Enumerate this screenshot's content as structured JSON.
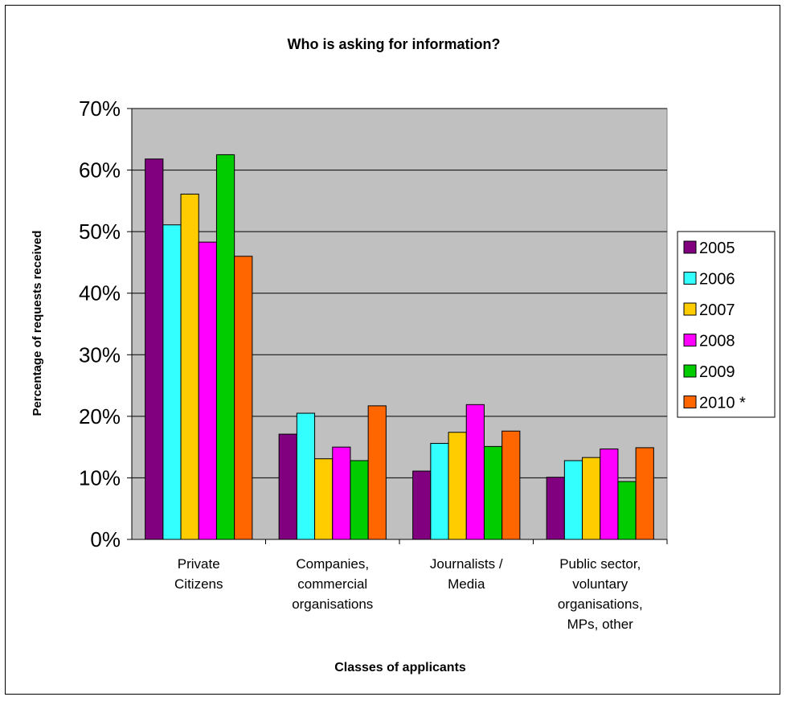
{
  "chart_data": {
    "type": "bar",
    "title": "Who is asking for information?",
    "xlabel": "Classes of applicants",
    "ylabel": "Percentage of requests received",
    "ylim": [
      0,
      70
    ],
    "yticks": [
      "0%",
      "10%",
      "20%",
      "30%",
      "40%",
      "50%",
      "60%",
      "70%"
    ],
    "grid": true,
    "legend_position": "right",
    "categories": [
      [
        "Private",
        "Citizens"
      ],
      [
        "Companies,",
        "commercial",
        "organisations"
      ],
      [
        "Journalists /",
        "Media"
      ],
      [
        "Public sector,",
        "voluntary",
        "organisations,",
        "MPs, other"
      ]
    ],
    "series": [
      {
        "name": "2005",
        "color": "#800080",
        "values": [
          61.8,
          17.1,
          11.1,
          10.1
        ]
      },
      {
        "name": "2006",
        "color": "#33FFFF",
        "values": [
          51.1,
          20.5,
          15.6,
          12.8
        ]
      },
      {
        "name": "2007",
        "color": "#FFCC00",
        "values": [
          56.1,
          13.1,
          17.4,
          13.3
        ]
      },
      {
        "name": "2008",
        "color": "#FF00FF",
        "values": [
          48.3,
          15.0,
          21.9,
          14.7
        ]
      },
      {
        "name": "2009",
        "color": "#00CC00",
        "values": [
          62.5,
          12.8,
          15.1,
          9.4
        ]
      },
      {
        "name": "2010 *",
        "color": "#FF6600",
        "values": [
          46.0,
          21.7,
          17.6,
          14.9
        ]
      }
    ],
    "plot_background": "#C0C0C0"
  }
}
